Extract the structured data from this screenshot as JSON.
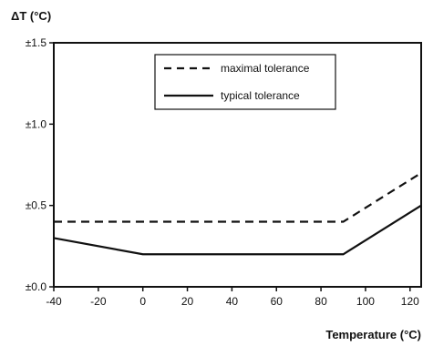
{
  "chart_data": {
    "type": "line",
    "title": "",
    "ylabel": "ΔT (°C)",
    "xlabel": "Temperature (°C)",
    "xlim": [
      -40,
      125
    ],
    "ylim": [
      0.0,
      1.5
    ],
    "x_ticks": [
      -40,
      -20,
      0,
      20,
      40,
      60,
      80,
      100,
      120
    ],
    "y_ticks": [
      {
        "value": 0.0,
        "label": "±0.0"
      },
      {
        "value": 0.5,
        "label": "±0.5"
      },
      {
        "value": 1.0,
        "label": "±1.0"
      },
      {
        "value": 1.5,
        "label": "±1.5"
      }
    ],
    "grid": false,
    "legend_position": "top-center",
    "series": [
      {
        "name": "maximal tolerance",
        "style": "dashed",
        "color": "#111111",
        "x": [
          -40,
          90,
          125
        ],
        "y": [
          0.4,
          0.4,
          0.7
        ]
      },
      {
        "name": "typical tolerance",
        "style": "solid",
        "color": "#111111",
        "x": [
          -40,
          0,
          90,
          125
        ],
        "y": [
          0.3,
          0.2,
          0.2,
          0.5
        ]
      }
    ]
  }
}
